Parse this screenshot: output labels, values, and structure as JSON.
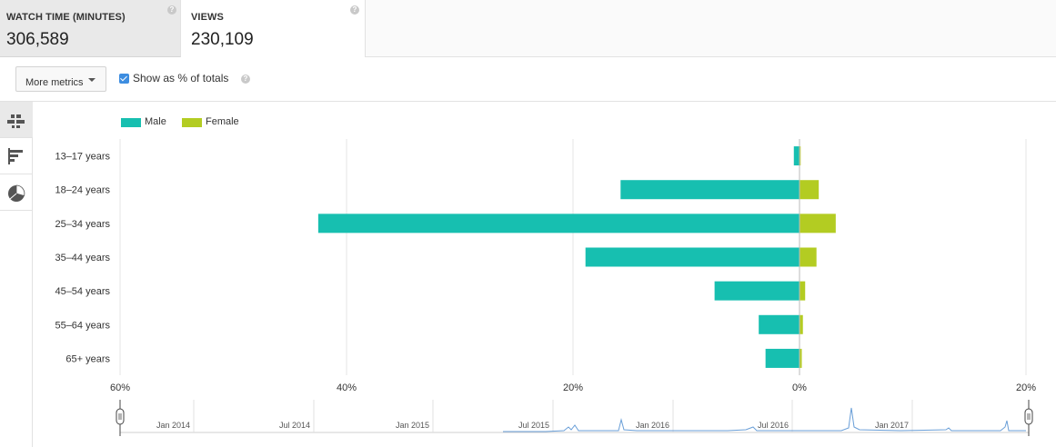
{
  "metrics": [
    {
      "label": "WATCH TIME (MINUTES)",
      "value": "306,589",
      "help": "?"
    },
    {
      "label": "VIEWS",
      "value": "230,109",
      "help": "?"
    }
  ],
  "toolbar": {
    "more_metrics_label": "More metrics",
    "show_percent_label": "Show as % of totals",
    "show_percent_checked": true,
    "help": "?"
  },
  "rail": {
    "items": [
      {
        "icon": "stacked-bar-icon",
        "active": true
      },
      {
        "icon": "bar-chart-icon",
        "active": false
      },
      {
        "icon": "pie-chart-icon",
        "active": false
      }
    ]
  },
  "colors": {
    "male": "#17bfb0",
    "female": "#b3cc22",
    "timeline_line": "#6a9fd8"
  },
  "chart_data": {
    "type": "bar",
    "orientation": "horizontal-diverging",
    "categories": [
      "13–17 years",
      "18–24 years",
      "25–34 years",
      "35–44 years",
      "45–54 years",
      "55–64 years",
      "65+ years"
    ],
    "series": [
      {
        "name": "Male",
        "values": [
          0.5,
          15.8,
          42.5,
          18.9,
          7.5,
          3.6,
          3.0
        ]
      },
      {
        "name": "Female",
        "values": [
          0.1,
          1.7,
          3.2,
          1.5,
          0.5,
          0.3,
          0.2
        ]
      }
    ],
    "xlim": [
      -60,
      20
    ],
    "xticks": [
      -60,
      -40,
      -20,
      0,
      20
    ],
    "xtick_labels": [
      "60%",
      "40%",
      "20%",
      "0%",
      "20%"
    ],
    "legend_position": "top-left",
    "grid": true
  },
  "timeline": {
    "labels": [
      "Jan 2014",
      "Jul 2014",
      "Jan 2015",
      "Jul 2015",
      "Jan 2016",
      "Jul 2016",
      "Jan 2017"
    ]
  }
}
